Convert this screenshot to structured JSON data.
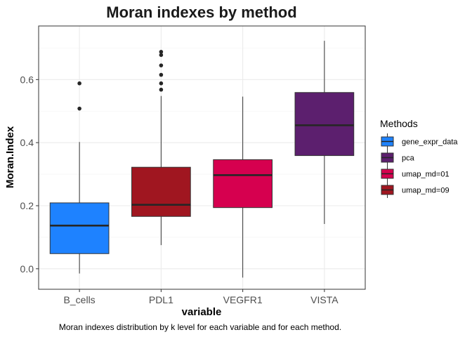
{
  "chart_data": {
    "type": "boxplot",
    "title": "Moran indexes by method",
    "xlabel": "variable",
    "ylabel": "Moran.Index",
    "caption": "Moran indexes distribution by k level for each variable and for each method.",
    "ylim": [
      -0.065,
      0.77
    ],
    "yticks": [
      "0.0",
      "0.2",
      "0.4",
      "0.6"
    ],
    "categories": [
      "B_cells",
      "PDL1",
      "VEGFR1",
      "VISTA"
    ],
    "grid": true,
    "legend": {
      "title": "Methods",
      "placement": "right",
      "entries": [
        {
          "label": "gene_expr_data",
          "color": "#1E82FF"
        },
        {
          "label": "pca",
          "color": "#5C1F6E"
        },
        {
          "label": "umap_md=01",
          "color": "#D6004F"
        },
        {
          "label": "umap_md=09",
          "color": "#A01620"
        }
      ]
    },
    "boxes": [
      {
        "category": "B_cells",
        "method": "gene_expr_data",
        "color": "#1E82FF",
        "whisker_low": -0.015,
        "q1": 0.048,
        "median": 0.137,
        "q3": 0.209,
        "whisker_high": 0.402,
        "outliers": [
          0.508,
          0.588
        ]
      },
      {
        "category": "PDL1",
        "method": "umap_md=09",
        "color": "#A01620",
        "whisker_low": 0.075,
        "q1": 0.166,
        "median": 0.203,
        "q3": 0.322,
        "whisker_high": 0.548,
        "outliers": [
          0.568,
          0.588,
          0.615,
          0.645,
          0.678,
          0.688
        ]
      },
      {
        "category": "VEGFR1",
        "method": "umap_md=01",
        "color": "#D6004F",
        "whisker_low": -0.028,
        "q1": 0.194,
        "median": 0.297,
        "q3": 0.346,
        "whisker_high": 0.546,
        "outliers": []
      },
      {
        "category": "VISTA",
        "method": "pca",
        "color": "#5C1F6E",
        "whisker_low": 0.142,
        "q1": 0.359,
        "median": 0.455,
        "q3": 0.559,
        "whisker_high": 0.723,
        "outliers": []
      }
    ]
  }
}
